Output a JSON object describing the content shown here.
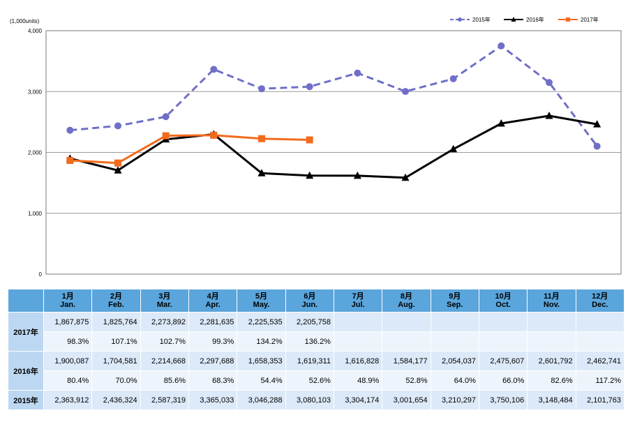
{
  "chart_data": {
    "type": "line",
    "unit_label": "(1,000units)",
    "ylim": [
      0,
      4000
    ],
    "yticks": [
      "0",
      "1,000",
      "2,000",
      "3,000",
      "4,000"
    ],
    "x_count": 12,
    "grid": true,
    "legend_position": "top-right",
    "series": [
      {
        "name": "2015年",
        "color": "#6f6fc8",
        "dash": true,
        "marker": "circle",
        "values": [
          2363.912,
          2436.324,
          2587.319,
          3365.033,
          3046.288,
          3080.103,
          3304.174,
          3001.654,
          3210.297,
          3750.106,
          3148.484,
          2101.763
        ]
      },
      {
        "name": "2016年",
        "color": "#000000",
        "dash": false,
        "marker": "triangle",
        "values": [
          1900.087,
          1704.581,
          2214.668,
          2297.688,
          1658.353,
          1619.311,
          1616.828,
          1584.177,
          2054.037,
          2475.607,
          2601.792,
          2462.741
        ]
      },
      {
        "name": "2017年",
        "color": "#f26b1d",
        "dash": false,
        "marker": "square",
        "values": [
          1867.875,
          1825.764,
          2273.892,
          2281.635,
          2225.535,
          2205.758
        ]
      }
    ]
  },
  "table": {
    "months": [
      {
        "jp": "1月",
        "en": "Jan."
      },
      {
        "jp": "2月",
        "en": "Feb."
      },
      {
        "jp": "3月",
        "en": "Mar."
      },
      {
        "jp": "4月",
        "en": "Apr."
      },
      {
        "jp": "5月",
        "en": "May."
      },
      {
        "jp": "6月",
        "en": "Jun."
      },
      {
        "jp": "7月",
        "en": "Jul."
      },
      {
        "jp": "8月",
        "en": "Aug."
      },
      {
        "jp": "9月",
        "en": "Sep."
      },
      {
        "jp": "10月",
        "en": "Oct."
      },
      {
        "jp": "11月",
        "en": "Nov."
      },
      {
        "jp": "12月",
        "en": "Dec."
      }
    ],
    "rows": [
      {
        "year": "2017年",
        "values": [
          "1,867,875",
          "1,825,764",
          "2,273,892",
          "2,281,635",
          "2,225,535",
          "2,205,758",
          "",
          "",
          "",
          "",
          "",
          ""
        ],
        "ratios": [
          "98.3%",
          "107.1%",
          "102.7%",
          "99.3%",
          "134.2%",
          "136.2%",
          "",
          "",
          "",
          "",
          "",
          ""
        ]
      },
      {
        "year": "2016年",
        "values": [
          "1,900,087",
          "1,704,581",
          "2,214,668",
          "2,297,688",
          "1,658,353",
          "1,619,311",
          "1,616,828",
          "1,584,177",
          "2,054,037",
          "2,475,607",
          "2,601,792",
          "2,462,741"
        ],
        "ratios": [
          "80.4%",
          "70.0%",
          "85.6%",
          "68.3%",
          "54.4%",
          "52.6%",
          "48.9%",
          "52.8%",
          "64.0%",
          "66.0%",
          "82.6%",
          "117.2%"
        ]
      },
      {
        "year": "2015年",
        "values": [
          "2,363,912",
          "2,436,324",
          "2,587,319",
          "3,365,033",
          "3,046,288",
          "3,080,103",
          "3,304,174",
          "3,001,654",
          "3,210,297",
          "3,750,106",
          "3,148,484",
          "2,101,763"
        ]
      }
    ]
  }
}
